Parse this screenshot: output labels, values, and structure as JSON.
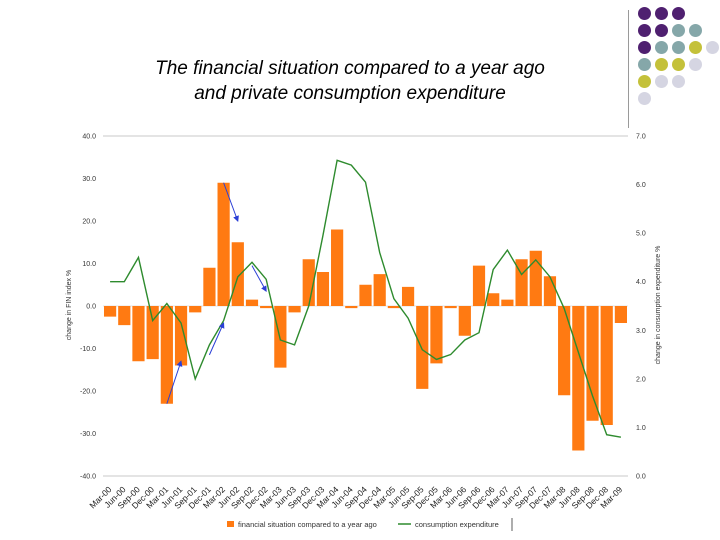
{
  "slide": {
    "title_line1": "The financial situation compared to a year ago",
    "title_line2": "and private consumption expenditure"
  },
  "colors": {
    "bars": "#ff7a12",
    "line": "#2e8b2e",
    "arrows": "#2b3fd6",
    "deco_purple": "#4f2070",
    "deco_teal": "#85a7a9",
    "deco_olive": "#c4c13a",
    "deco_grey": "#d5d5e2"
  },
  "chart_data": {
    "type": "bar",
    "categories": [
      "Mar-00",
      "Jun-00",
      "Sep-00",
      "Dec-00",
      "Mar-01",
      "Jun-01",
      "Sep-01",
      "Dec-01",
      "Mar-02",
      "Jun-02",
      "Sep-02",
      "Dec-02",
      "Mar-03",
      "Jun-03",
      "Sep-03",
      "Dec-03",
      "Mar-04",
      "Jun-04",
      "Sep-04",
      "Dec-04",
      "Mar-05",
      "Jun-05",
      "Sep-05",
      "Dec-05",
      "Mar-06",
      "Jun-06",
      "Sep-06",
      "Dec-06",
      "Mar-07",
      "Jun-07",
      "Sep-07",
      "Dec-07",
      "Mar-08",
      "Jun-08",
      "Sep-08",
      "Dec-08",
      "Mar-09"
    ],
    "series": [
      {
        "name": "financial situation compared to a year ago",
        "type": "bar",
        "axis": "left",
        "values": [
          -2.5,
          -4.5,
          -13,
          -12.5,
          -23,
          -14,
          -1.5,
          9,
          29,
          15,
          1.5,
          -0.5,
          -14.5,
          -1.5,
          11,
          8,
          18,
          -0.5,
          5,
          7.5,
          -0.5,
          4.5,
          -19.5,
          -13.5,
          -0.5,
          -7,
          9.5,
          3,
          1.5,
          11,
          13,
          7,
          -21,
          -34,
          -27,
          -28,
          -4
        ]
      },
      {
        "name": "consumption expenditure",
        "type": "line",
        "axis": "right",
        "values": [
          4.0,
          4.0,
          4.5,
          3.2,
          3.55,
          3.15,
          2.0,
          2.7,
          3.2,
          4.1,
          4.4,
          4.05,
          2.8,
          2.7,
          3.5,
          4.95,
          6.5,
          6.4,
          6.05,
          4.6,
          3.65,
          3.25,
          2.6,
          2.4,
          2.5,
          2.8,
          2.95,
          4.25,
          4.65,
          4.15,
          4.45,
          4.1,
          3.45,
          2.55,
          1.65,
          0.85,
          0.8
        ]
      }
    ],
    "left_axis": {
      "label": "change in FIN index %",
      "ylim": [
        -40,
        40
      ],
      "ticks": [
        "-40.0",
        "-30.0",
        "-20.0",
        "-10.0",
        "0.0",
        "10.0",
        "20.0",
        "30.0",
        "40.0"
      ]
    },
    "right_axis": {
      "label": "change in consumption expenditure %",
      "ylim": [
        0,
        7
      ],
      "ticks": [
        "0.0",
        "1.0",
        "2.0",
        "3.0",
        "4.0",
        "5.0",
        "6.0",
        "7.0"
      ]
    },
    "arrows": [
      {
        "from": {
          "x": "Mar-01",
          "y": -23
        },
        "to": {
          "x": "Jun-01",
          "y": -13
        }
      },
      {
        "from": {
          "x": "Dec-01",
          "y": -11.5
        },
        "to": {
          "x": "Mar-02",
          "y": -4
        }
      },
      {
        "from": {
          "x": "Mar-02",
          "y": 29
        },
        "to": {
          "x": "Jun-02",
          "y": 20
        }
      },
      {
        "from": {
          "x": "Sep-02",
          "y": 9.5
        },
        "to": {
          "x": "Dec-02",
          "y": 3.5
        }
      }
    ],
    "legend": {
      "position": "bottom",
      "items": [
        "financial situation compared to a year ago",
        "consumption expenditure"
      ]
    },
    "grid": false
  }
}
